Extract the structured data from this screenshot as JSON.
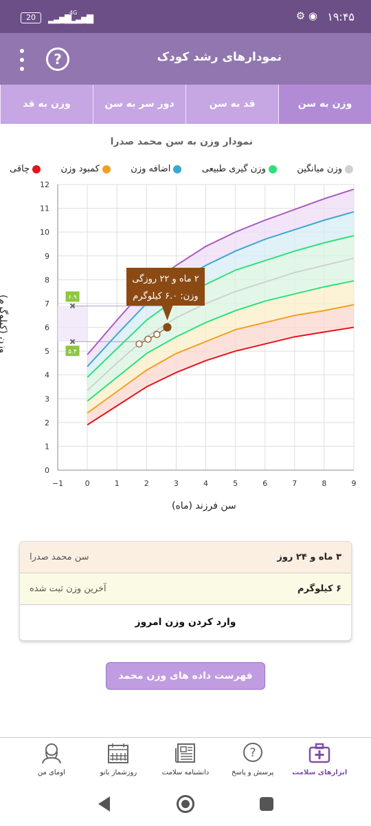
{
  "status_bar": {
    "battery": "20",
    "network": "4G",
    "time": "۱۹:۴۵"
  },
  "app_bar": {
    "title": "نمودارهای رشد کودک"
  },
  "tabs": [
    {
      "label": "وزن به سن",
      "active": true
    },
    {
      "label": "قد به سن",
      "active": false
    },
    {
      "label": "دور سر به سن",
      "active": false
    },
    {
      "label": "وزن به قد",
      "active": false
    }
  ],
  "chart_title": "نمودار وزن به سن محمد صدرا",
  "legend": [
    {
      "label": "چاقی",
      "color": "#e4141c"
    },
    {
      "label": "کمبود وزن",
      "color": "#f0a020"
    },
    {
      "label": "اضافه وزن",
      "color": "#3aa8d0"
    },
    {
      "label": "وزن گیری طبیعی",
      "color": "#2ee07a"
    },
    {
      "label": "وزن میانگین",
      "color": "#d0d0d0"
    }
  ],
  "chart_data": {
    "type": "line",
    "xlabel": "سن فرزند (ماه)",
    "ylabel": "وزن (کیلوگرم)",
    "xlim": [
      -1,
      9
    ],
    "ylim": [
      0,
      12
    ],
    "x_ticks": [
      "−1",
      "0",
      "1",
      "2",
      "3",
      "4",
      "5",
      "6",
      "7",
      "8",
      "9"
    ],
    "y_ticks": [
      "0",
      "1",
      "2",
      "3",
      "4",
      "5",
      "6",
      "7",
      "8",
      "9",
      "10",
      "11",
      "12"
    ],
    "grid": true,
    "x": [
      0,
      1,
      2,
      3,
      4,
      5,
      6,
      7,
      8,
      9
    ],
    "series": [
      {
        "color": "#e4141c",
        "values": [
          1.9,
          2.7,
          3.5,
          4.1,
          4.6,
          5.0,
          5.3,
          5.6,
          5.8,
          6.0
        ]
      },
      {
        "color": "#f0a020",
        "values": [
          2.4,
          3.3,
          4.2,
          4.9,
          5.4,
          5.9,
          6.2,
          6.5,
          6.7,
          6.95
        ]
      },
      {
        "color": "#2ee07a",
        "values": [
          2.9,
          3.9,
          4.9,
          5.6,
          6.2,
          6.7,
          7.1,
          7.4,
          7.7,
          7.95
        ]
      },
      {
        "color": "#d0d0d0",
        "values": [
          3.35,
          4.5,
          5.6,
          6.4,
          7.0,
          7.5,
          7.9,
          8.3,
          8.6,
          8.9
        ]
      },
      {
        "color": "#2ee07a",
        "values": [
          3.9,
          5.1,
          6.3,
          7.2,
          7.8,
          8.4,
          8.8,
          9.2,
          9.55,
          9.85
        ]
      },
      {
        "color": "#3aa8d0",
        "values": [
          4.35,
          5.7,
          7.0,
          7.9,
          8.6,
          9.2,
          9.7,
          10.1,
          10.5,
          10.85
        ]
      },
      {
        "color": "#a85cc0",
        "values": [
          4.85,
          6.3,
          7.7,
          8.6,
          9.4,
          10.0,
          10.5,
          10.95,
          11.4,
          11.8
        ]
      }
    ],
    "band_colors": [
      "#fbd7cf",
      "#fbedc8",
      "#d9f4e2",
      "#d9f4e2",
      "#d5ecf4",
      "#eedcf4"
    ],
    "child_points": [
      {
        "x": 1.75,
        "y": 5.3
      },
      {
        "x": 2.05,
        "y": 5.5
      },
      {
        "x": 2.35,
        "y": 5.7
      },
      {
        "x": 2.7,
        "y": 6.0
      }
    ],
    "markers": [
      {
        "x": -0.5,
        "y": 6.9,
        "label": "۶.۹"
      },
      {
        "x": -0.5,
        "y": 5.4,
        "label": "۵.۴"
      }
    ],
    "tooltip": {
      "line1": "۲ ماه و ۲۲ روزگی",
      "line2": "وزن: ۶.۰ کیلوگرم"
    }
  },
  "info": {
    "age_label": "سن محمد صدرا",
    "age_value": "۳ ماه و ۲۴ روز",
    "weight_label": "آخرین وزن ثبت شده",
    "weight_value": "۶ کیلوگرم",
    "enter_label": "وارد کردن وزن امروز"
  },
  "list_button": "فهرست داده های وزن محمد صدرا",
  "bottom_nav": [
    {
      "label": "ابزارهای سلامت",
      "icon": "medical-kit-icon",
      "active": true
    },
    {
      "label": "پرسش و پاسخ",
      "icon": "question-bubble-icon",
      "active": false
    },
    {
      "label": "دانشنامه سلامت",
      "icon": "newspaper-icon",
      "active": false
    },
    {
      "label": "روزشمار بانو",
      "icon": "calendar-icon",
      "active": false
    },
    {
      "label": "اومای من",
      "icon": "user-icon",
      "active": false
    }
  ]
}
